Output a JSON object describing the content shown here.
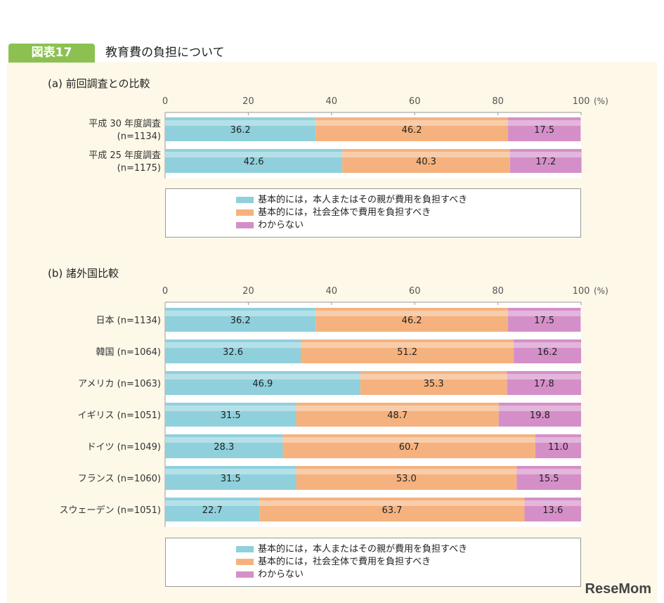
{
  "figure_label": "図表17",
  "figure_title": "教育費の負担について",
  "watermark": "ReseMom",
  "colors": {
    "self": "#8fd0dc",
    "society": "#f5b27e",
    "unknown": "#d58fc8",
    "tag": "#8cc152",
    "panel": "#fdf8e8"
  },
  "legend": [
    "基本的には，本人またはその親が費用を負担すべき",
    "基本的には，社会全体で費用を負担すべき",
    "わからない"
  ],
  "chart_data": [
    {
      "type": "bar",
      "orientation": "horizontal",
      "stacked": true,
      "title": "(a) 前回調査との比較",
      "xlim": [
        0,
        100
      ],
      "xticks": [
        "0",
        "20",
        "40",
        "60",
        "80",
        "100"
      ],
      "unit": "(%)",
      "categories": [
        [
          "平成 30 年度調査",
          "(n=1134)"
        ],
        [
          "平成 25 年度調査",
          "(n=1175)"
        ]
      ],
      "series": [
        {
          "name": "基本的には，本人またはその親が費用を負担すべき",
          "values": [
            36.2,
            42.6
          ]
        },
        {
          "name": "基本的には，社会全体で費用を負担すべき",
          "values": [
            46.2,
            40.3
          ]
        },
        {
          "name": "わからない",
          "values": [
            17.5,
            17.2
          ]
        }
      ],
      "legend_position": "bottom"
    },
    {
      "type": "bar",
      "orientation": "horizontal",
      "stacked": true,
      "title": "(b) 諸外国比較",
      "xlim": [
        0,
        100
      ],
      "xticks": [
        "0",
        "20",
        "40",
        "60",
        "80",
        "100"
      ],
      "unit": "(%)",
      "categories": [
        [
          "日本 (n=1134)"
        ],
        [
          "韓国 (n=1064)"
        ],
        [
          "アメリカ (n=1063)"
        ],
        [
          "イギリス (n=1051)"
        ],
        [
          "ドイツ (n=1049)"
        ],
        [
          "フランス (n=1060)"
        ],
        [
          "スウェーデン (n=1051)"
        ]
      ],
      "series": [
        {
          "name": "基本的には，本人またはその親が費用を負担すべき",
          "values": [
            36.2,
            32.6,
            46.9,
            31.5,
            28.3,
            31.5,
            22.7
          ]
        },
        {
          "name": "基本的には，社会全体で費用を負担すべき",
          "values": [
            46.2,
            51.2,
            35.3,
            48.7,
            60.7,
            53.0,
            63.7
          ]
        },
        {
          "name": "わからない",
          "values": [
            17.5,
            16.2,
            17.8,
            19.8,
            11.0,
            15.5,
            13.6
          ]
        }
      ],
      "legend_position": "bottom"
    }
  ]
}
